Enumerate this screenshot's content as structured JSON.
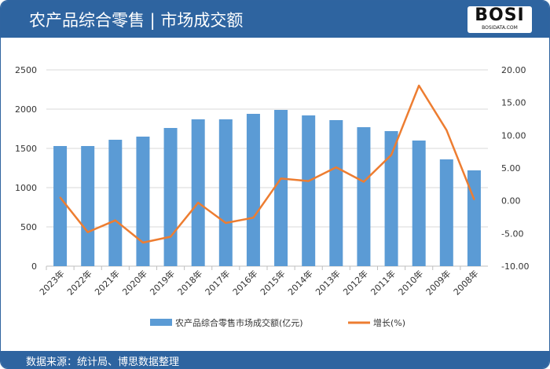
{
  "header": {
    "title": "农产品综合零售 | 市场成交额",
    "logo_text": "BOSI",
    "logo_sub": "BOSIDATA.COM"
  },
  "footer": {
    "source": "数据来源：统计局、博思数据整理"
  },
  "chart_data": {
    "type": "bar+line",
    "categories": [
      "2023年",
      "2022年",
      "2021年",
      "2020年",
      "2019年",
      "2018年",
      "2017年",
      "2016年",
      "2015年",
      "2014年",
      "2013年",
      "2012年",
      "2011年",
      "2010年",
      "2009年",
      "2008年"
    ],
    "series": [
      {
        "name": "农产品综合零售市场成交额(亿元)",
        "type": "bar",
        "axis": "left",
        "color": "#5b9bd5",
        "values": [
          1530,
          1530,
          1610,
          1650,
          1760,
          1870,
          1870,
          1940,
          1990,
          1920,
          1860,
          1770,
          1720,
          1600,
          1360,
          1220
        ]
      },
      {
        "name": "增长(%)",
        "type": "line",
        "axis": "right",
        "color": "#ed7d31",
        "values": [
          0.5,
          -4.8,
          -3.0,
          -6.4,
          -5.5,
          -0.3,
          -3.4,
          -2.6,
          3.4,
          3.0,
          5.1,
          2.9,
          7.0,
          17.6,
          10.8,
          0.2
        ]
      }
    ],
    "y_left": {
      "range": [
        0,
        2500
      ],
      "ticks": [
        "0",
        "500",
        "1000",
        "1500",
        "2000",
        "2500"
      ]
    },
    "y_right": {
      "range": [
        -10,
        20
      ],
      "ticks": [
        "-10.00",
        "-5.00",
        "0.00",
        "5.00",
        "10.00",
        "15.00",
        "20.00"
      ]
    },
    "grid": true,
    "legend": "bottom"
  }
}
